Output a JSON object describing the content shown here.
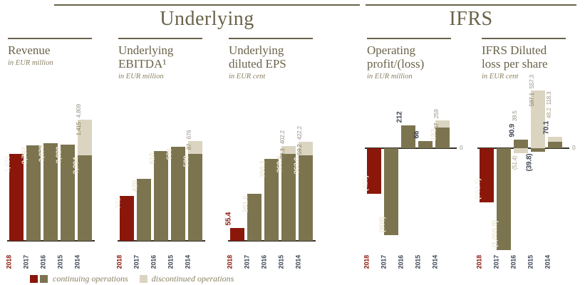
{
  "header": {
    "underlying": "Underlying",
    "ifrs": "IFRS"
  },
  "legend": [
    {
      "label": "continuing operations",
      "swatches": [
        "red",
        "olive"
      ]
    },
    {
      "label": "discontinued operations",
      "swatches": [
        "beige"
      ]
    }
  ],
  "colors": {
    "red": "#8A170A",
    "olive": "#7C744F",
    "beige": "#DBD4C0",
    "slate": "#3E4755",
    "grey": "#97938A",
    "disc_out": "#A89F80",
    "label_on_red": "#F6F2E9",
    "label_on_olive": "#EDE7D6",
    "label_on_beige": "#8A8162",
    "title": "#6A634A"
  },
  "chart_data": [
    {
      "type": "bar",
      "group": "Underlying",
      "title": "Revenue",
      "title_lines": [
        "Revenue",
        ""
      ],
      "subtitle": "in EUR million",
      "categories": [
        "2018",
        "2017",
        "2016",
        "2015",
        "2014"
      ],
      "series": [
        {
          "name": "continuing operations",
          "values": [
            3435,
            3797,
            3879,
            3820,
            3394
          ],
          "labels": [
            "3,435",
            "3,797",
            "3,879",
            "3,820",
            "3,394"
          ],
          "label_pos": [
            "in",
            "in",
            "in",
            "in",
            "in"
          ]
        },
        {
          "name": "discontinued operations",
          "values": [
            0,
            0,
            0,
            0,
            1415
          ],
          "labels": [
            null,
            null,
            null,
            null,
            "1,415"
          ],
          "label_pos": [
            null,
            null,
            null,
            null,
            "in"
          ]
        }
      ],
      "totals": [
        null,
        null,
        null,
        null,
        "4,809"
      ],
      "ylim": [
        0,
        5000
      ],
      "zero_label": null
    },
    {
      "type": "bar",
      "group": "Underlying",
      "title": "Underlying EBITDA¹",
      "title_lines": [
        "Underlying",
        "EBITDA¹"
      ],
      "subtitle": "in EUR million",
      "categories": [
        "2018",
        "2017",
        "2016",
        "2015",
        "2014"
      ],
      "series": [
        {
          "name": "continuing operations",
          "values": [
            302,
            420,
            610,
            638,
            589
          ],
          "labels": [
            "302",
            "420",
            "610",
            "638",
            "589"
          ],
          "label_pos": [
            "in",
            "in",
            "in",
            "in",
            "in"
          ]
        },
        {
          "name": "discontinued operations",
          "values": [
            0,
            0,
            0,
            0,
            87
          ],
          "labels": [
            null,
            null,
            null,
            null,
            "87"
          ],
          "label_pos": [
            null,
            null,
            null,
            null,
            "in"
          ]
        }
      ],
      "totals": [
        null,
        null,
        null,
        null,
        "676"
      ],
      "ylim": [
        0,
        710
      ],
      "zero_label": null
    },
    {
      "type": "bar",
      "group": "Underlying",
      "title": "Underlying diluted EPS",
      "title_lines": [
        "Underlying",
        "diluted EPS"
      ],
      "subtitle": "in EUR cent",
      "categories": [
        "2018",
        "2017",
        "2016",
        "2015",
        "2014"
      ],
      "series": [
        {
          "name": "continuing operations",
          "values": [
            55.4,
            201.6,
            350.3,
            368.9,
            363.0
          ],
          "labels": [
            "55.4",
            "201.6",
            "350.3",
            "368.9",
            "363.0"
          ],
          "label_pos": [
            "out",
            "in",
            "in",
            "in",
            "in"
          ]
        },
        {
          "name": "discontinued operations",
          "values": [
            0,
            0,
            0,
            33.3,
            59.2
          ],
          "labels": [
            null,
            null,
            null,
            "33.3",
            "59.2"
          ],
          "label_pos": [
            null,
            null,
            null,
            "in",
            "in"
          ]
        }
      ],
      "totals": [
        null,
        null,
        null,
        "402.2",
        "422.2"
      ],
      "ylim": [
        0,
        440
      ],
      "zero_label": null
    },
    {
      "type": "bar",
      "group": "IFRS",
      "title": "Operating profit/(loss)",
      "title_lines": [
        "Operating",
        "profit/(loss)"
      ],
      "subtitle": "in EUR million",
      "categories": [
        "2018",
        "2017",
        "2016",
        "2015",
        "2014"
      ],
      "series": [
        {
          "name": "continuing operations",
          "values": [
            -423,
            -808,
            212,
            66,
            192
          ],
          "labels": [
            "(423)",
            "(808)",
            "212",
            "66",
            "192"
          ],
          "label_pos": [
            "in",
            "in",
            "out",
            "out",
            "in"
          ]
        },
        {
          "name": "discontinued operations",
          "values": [
            0,
            0,
            0,
            0,
            67
          ],
          "labels": [
            null,
            null,
            null,
            null,
            "67"
          ],
          "label_pos": [
            null,
            null,
            null,
            null,
            "in"
          ]
        }
      ],
      "totals": [
        null,
        null,
        null,
        null,
        "259"
      ],
      "ylim": [
        -830,
        270
      ],
      "zero_label": "0"
    },
    {
      "type": "bar",
      "group": "IFRS",
      "title": "IFRS Diluted loss per share",
      "title_lines": [
        "IFRS Diluted",
        "loss per share"
      ],
      "subtitle": "in EUR cent",
      "categories": [
        "2018",
        "2017",
        "2016",
        "2015",
        "2014"
      ],
      "series": [
        {
          "name": "continuing operations",
          "values": [
            -561.8,
            -1058.9,
            90.9,
            -39.8,
            70.1
          ],
          "labels": [
            "(561.8)",
            "(1,058.9)",
            "90.9",
            "(39.8)",
            "70.1"
          ],
          "label_pos": [
            "in",
            "in",
            "out",
            "out",
            "out"
          ]
        },
        {
          "name": "discontinued operations",
          "values": [
            0,
            0,
            -51.4,
            597.1,
            48.2
          ],
          "labels": [
            null,
            null,
            "(51.4)",
            "597.1",
            "48.2"
          ],
          "label_pos": [
            null,
            null,
            "out",
            "in",
            "out"
          ]
        }
      ],
      "totals": [
        null,
        null,
        "39.5",
        "557.3",
        "118.3"
      ],
      "ylim": [
        -1060,
        560
      ],
      "zero_label": "0"
    }
  ]
}
